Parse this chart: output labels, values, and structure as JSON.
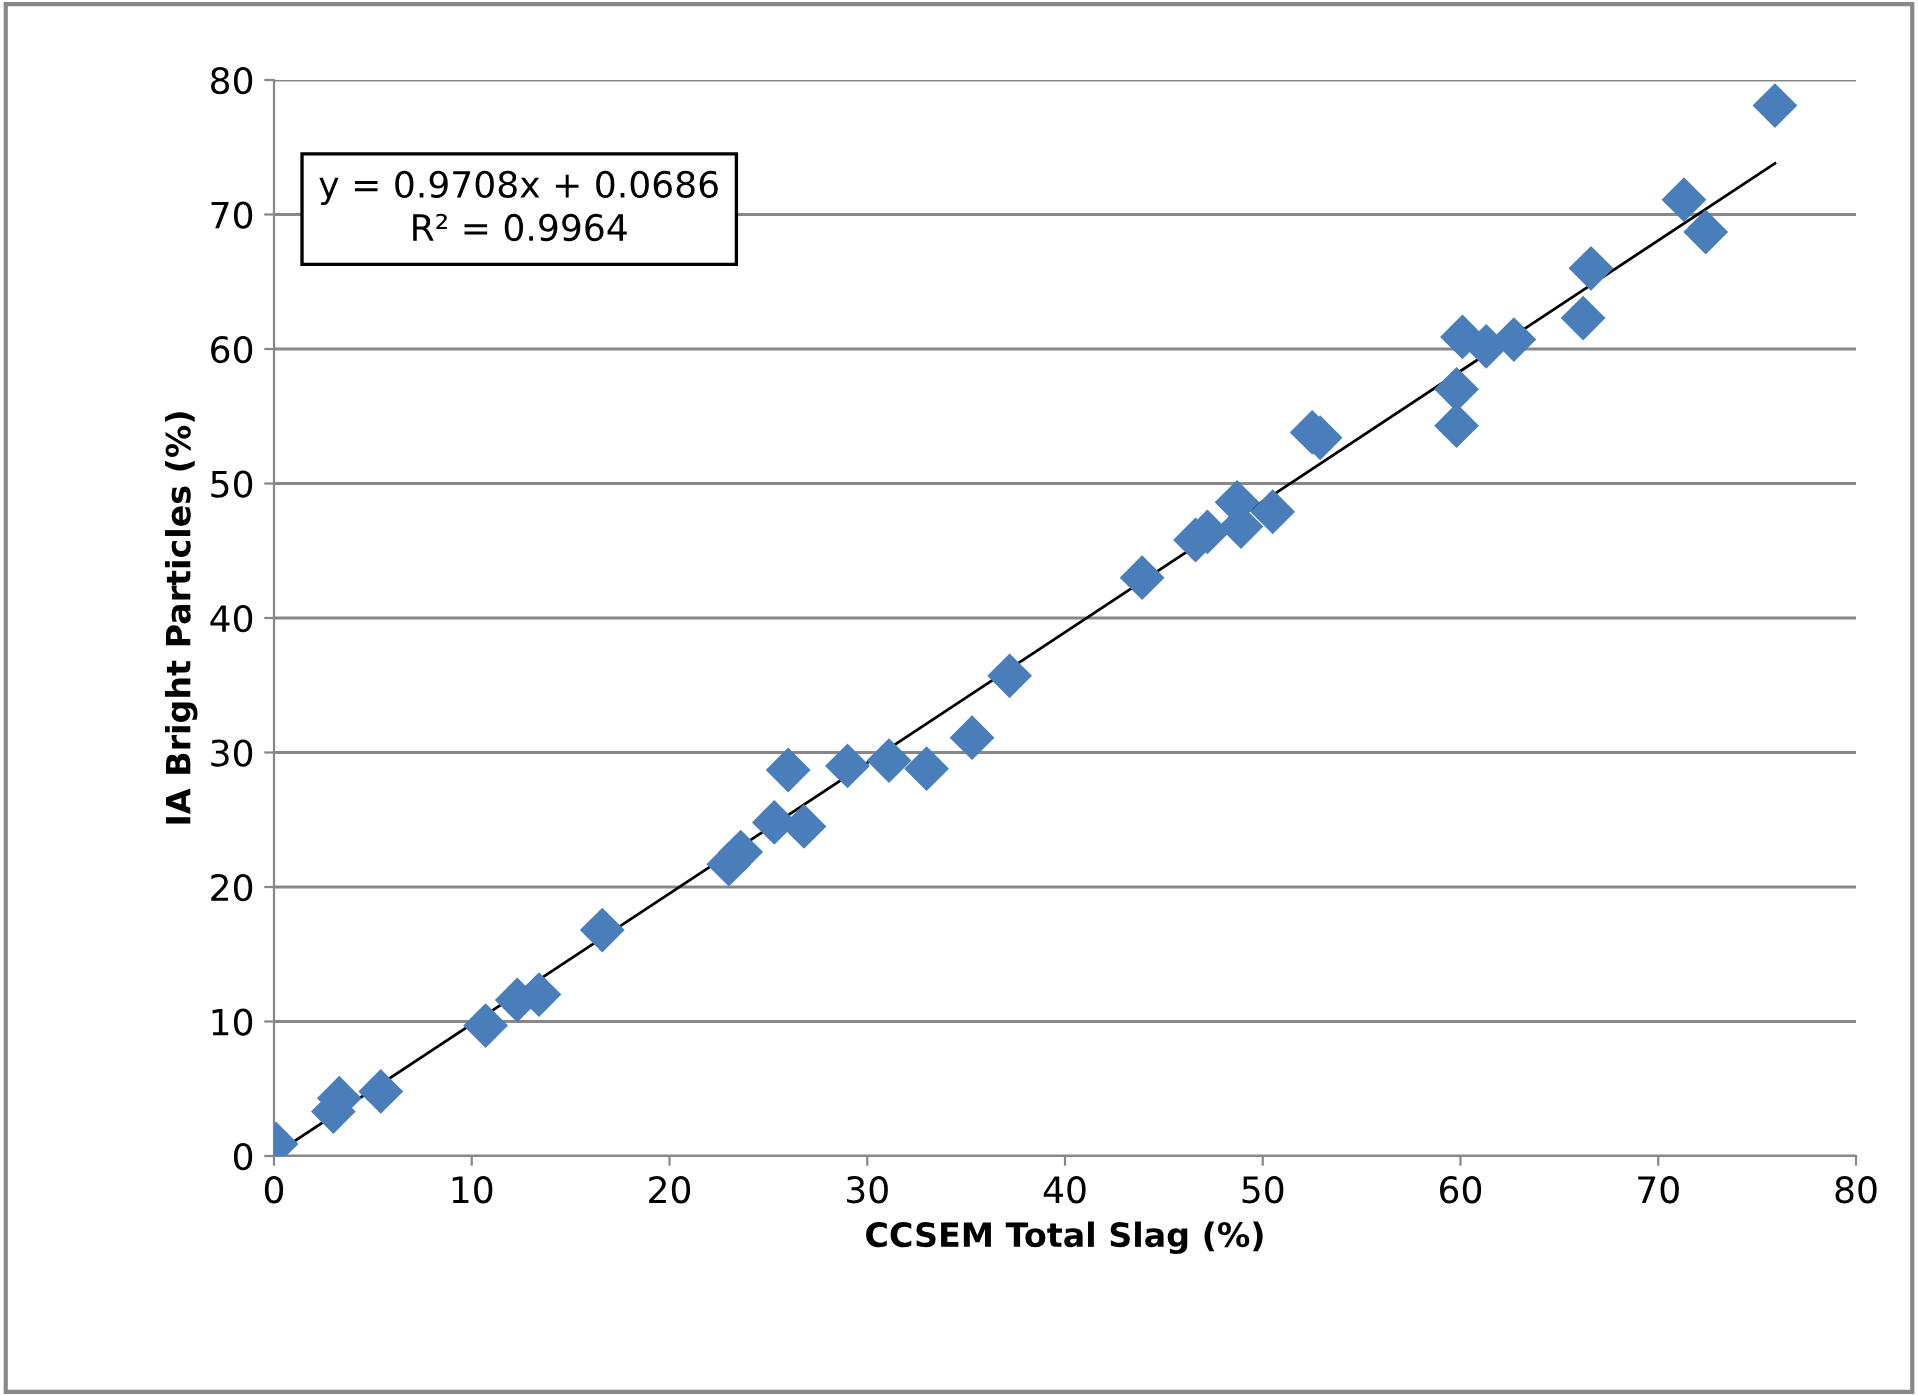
{
  "chart_data": {
    "type": "scatter",
    "xlabel": "CCSEM Total Slag (%)",
    "ylabel": "IA Bright Particles (%)",
    "xlim": [
      0,
      80
    ],
    "xticks": [
      0,
      10,
      20,
      30,
      40,
      50,
      60,
      70,
      80
    ],
    "ylim": [
      0,
      80
    ],
    "yticks": [
      0,
      10,
      20,
      30,
      40,
      50,
      60,
      70,
      80
    ],
    "grid": "y",
    "annotations": [
      "y = 0.9708x + 0.0686\nR² = 0.9964"
    ],
    "series": [
      {
        "marker": "diamond",
        "color": "#4a7ebb",
        "x": [
          0.1,
          3.0,
          3.3,
          5.4,
          10.7,
          12.3,
          13.4,
          16.6,
          23.0,
          23.6,
          25.3,
          26.0,
          26.8,
          29.0,
          31.1,
          33.0,
          35.3,
          37.2,
          43.9,
          46.6,
          47.2,
          48.7,
          48.9,
          50.5,
          52.5,
          52.9,
          59.8,
          59.8,
          60.1,
          61.3,
          62.7,
          66.2,
          66.6,
          71.3,
          72.4,
          75.9
        ],
        "values": [
          0.9,
          3.3,
          4.3,
          4.8,
          9.7,
          11.6,
          12.0,
          16.8,
          21.7,
          22.6,
          24.8,
          28.7,
          24.5,
          29.0,
          29.4,
          28.8,
          31.1,
          35.7,
          43.0,
          45.8,
          46.4,
          48.6,
          46.8,
          47.9,
          53.8,
          53.4,
          54.3,
          57.0,
          60.9,
          60.2,
          60.7,
          62.3,
          66.0,
          71.1,
          68.7,
          78.1
        ]
      },
      {
        "type": "line",
        "color": "#000000",
        "line_style": "solid",
        "x": [
          0,
          75.9
        ],
        "values": [
          0.1,
          73.8
        ]
      }
    ]
  }
}
